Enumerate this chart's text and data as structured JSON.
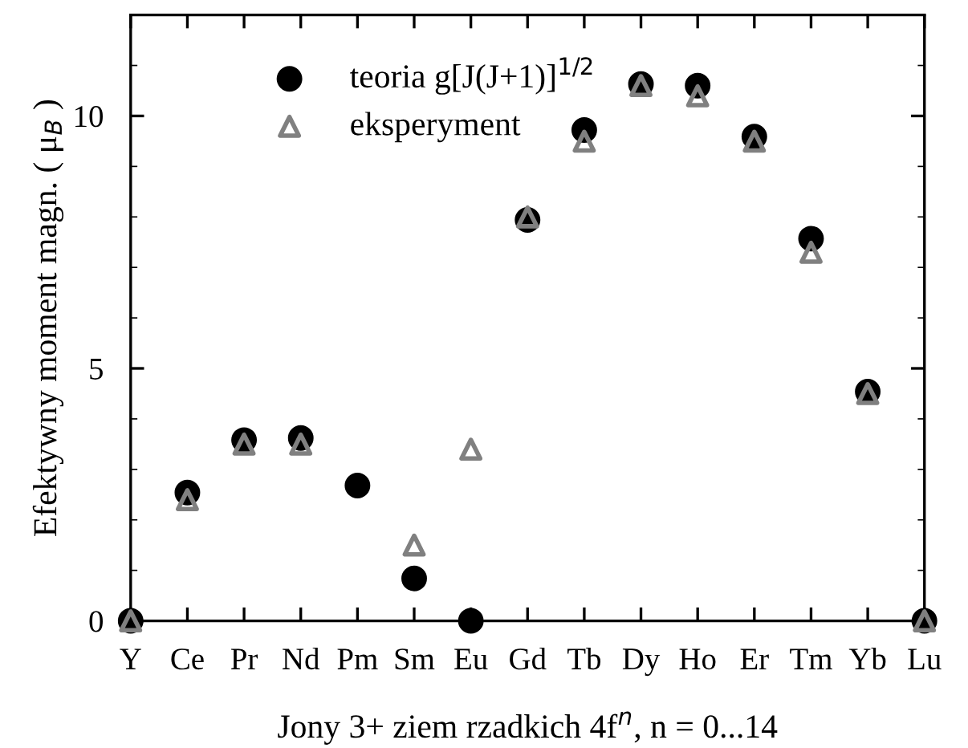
{
  "chart_data": {
    "type": "scatter",
    "xlabel": "Jony 3+ ziem rzadkich 4f$^{n}$, n = 0...14",
    "ylabel": "Efektywny moment magn. ( μ$_{B}$ )",
    "categories": [
      "Y",
      "Ce",
      "Pr",
      "Nd",
      "Pm",
      "Sm",
      "Eu",
      "Gd",
      "Tb",
      "Dy",
      "Ho",
      "Er",
      "Tm",
      "Yb",
      "Lu"
    ],
    "ylim": [
      0,
      12
    ],
    "yticks": [
      0,
      5,
      10
    ],
    "legend": "top left",
    "grid": false,
    "series": [
      {
        "name": "teoria g[J(J+1)]$^{1/2}$",
        "color": "#000000",
        "marker": "circle",
        "values": [
          0,
          2.54,
          3.58,
          3.62,
          2.68,
          0.84,
          0,
          7.94,
          9.72,
          10.63,
          10.6,
          9.59,
          7.57,
          4.54,
          0
        ]
      },
      {
        "name": "eksperyment",
        "color": "#808080",
        "marker": "triangle",
        "values": [
          0,
          2.4,
          3.5,
          3.5,
          null,
          1.5,
          3.4,
          8.0,
          9.5,
          10.6,
          10.4,
          9.5,
          7.3,
          4.5,
          0
        ]
      }
    ]
  }
}
